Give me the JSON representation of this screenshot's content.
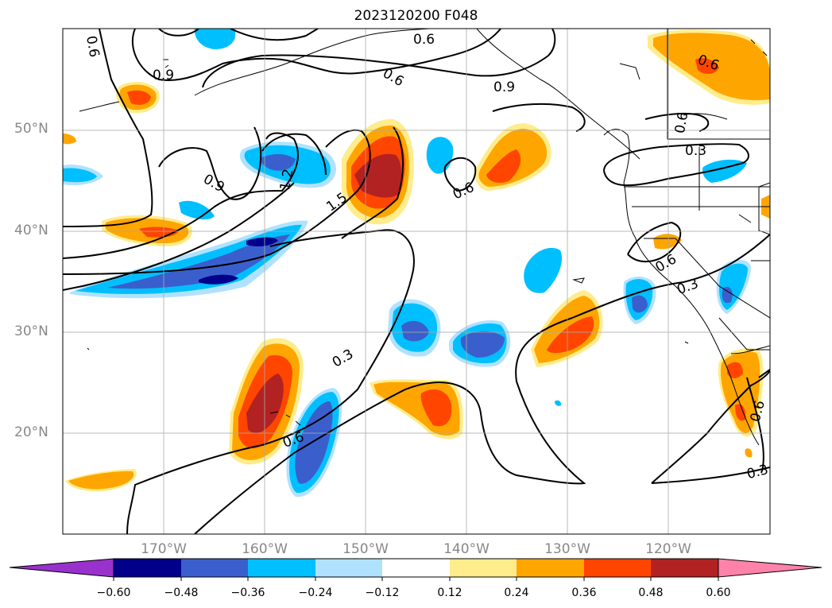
{
  "title": "2023120200 F048",
  "axes": {
    "lat_labels": [
      "50°N",
      "40°N",
      "30°N",
      "20°N"
    ],
    "lon_labels": [
      "170°W",
      "160°W",
      "150°W",
      "140°W",
      "130°W",
      "120°W"
    ]
  },
  "contour_labels": [
    "0.6",
    "0.9",
    "0.6",
    "0.6",
    "0.9",
    "0.6",
    "0.3",
    "0.9",
    "1.2",
    "1.5",
    "0.6",
    "0.6",
    "0.3",
    "0.3",
    "0.6",
    "0.3",
    "0.6"
  ],
  "colorbar": {
    "tick_labels": [
      "−0.60",
      "−0.48",
      "−0.36",
      "−0.24",
      "−0.12",
      "0.12",
      "0.24",
      "0.36",
      "0.48",
      "0.60"
    ],
    "colors": [
      "#9932cc",
      "#00008b",
      "#3a5fcd",
      "#00bfff",
      "#b0e2ff",
      "#ffffff",
      "#ffec8b",
      "#ffa500",
      "#ff4500",
      "#b22222",
      "#ff82ab"
    ]
  }
}
